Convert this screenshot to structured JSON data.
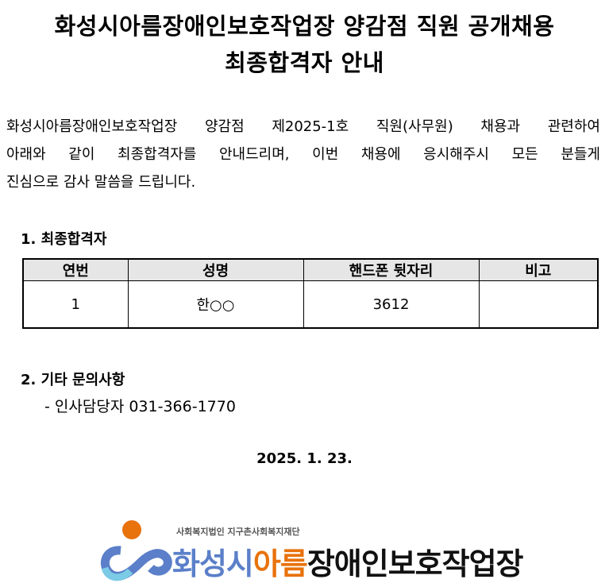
{
  "title": {
    "line1": "화성시아름장애인보호작업장 양감점 직원 공개채용",
    "line2": "최종합격자 안내"
  },
  "intro": [
    "화성시아름장애인보호작업장 양감점 제2025-1호 직원(사무원) 채용과 관련하여",
    "아래와 같이 최종합격자를 안내드리며, 이번 채용에 응시해주시 모든 분들게",
    "진심으로 감사 말씀을 드립니다."
  ],
  "section1": {
    "heading": "1. 최종합격자",
    "columns": [
      "연번",
      "성명",
      "핸드폰 뒷자리",
      "비고"
    ],
    "rows": [
      [
        "1",
        "한○○",
        "3612",
        ""
      ]
    ]
  },
  "section2": {
    "heading": "2. 기타 문의사항",
    "contact": "- 인사담당자 031-366-1770"
  },
  "date": "2025. 1. 23.",
  "logo": {
    "subtitle": "사회복지법인 지구촌사회복지재단",
    "name_part1": "화성시",
    "name_part2": "아름",
    "name_part3": "장애인보호작업장",
    "colors": {
      "blue": "#5b7fc9",
      "orange": "#e8720c",
      "lightblue": "#7ccbe6"
    }
  }
}
